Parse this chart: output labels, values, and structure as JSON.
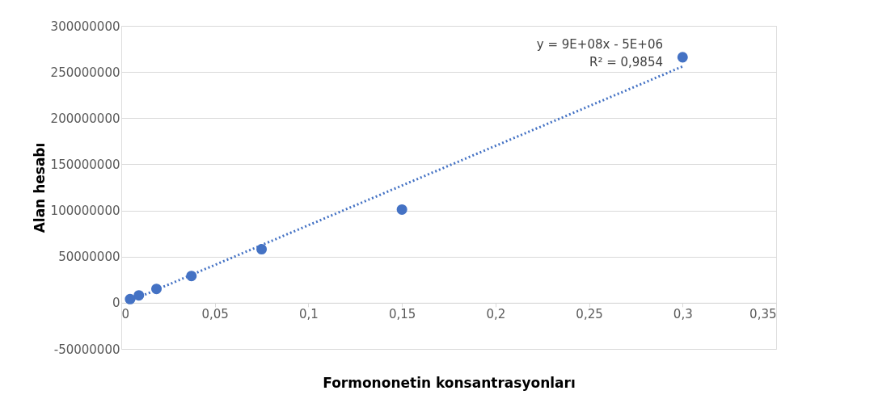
{
  "chart_data": {
    "type": "scatter",
    "xlabel": "Formononetin konsantrasyonları",
    "ylabel": "Alan hesabı",
    "annotations": [
      "y = 9E+08x - 5E+06",
      "R² = 0,9854"
    ],
    "series": [
      {
        "color": "#4472c4",
        "x": [
          0.0047,
          0.0094,
          0.0188,
          0.0375,
          0.075,
          0.15,
          0.3
        ],
        "values": [
          4000000,
          8000000,
          15000000,
          29000000,
          58000000,
          101000000,
          266000000
        ],
        "marker": "circle"
      },
      {
        "type": "line",
        "color": "#4472c4",
        "x": [
          0.0047,
          0.3
        ],
        "values": [
          2000000,
          256000000
        ],
        "line_style": "dotted"
      }
    ],
    "xlim": [
      0,
      0.35
    ],
    "xticks": [
      0,
      {
        "value": 0.05,
        "label": "0,05"
      },
      {
        "value": 0.1,
        "label": "0,1"
      },
      {
        "value": 0.15,
        "label": "0,15"
      },
      {
        "value": 0.2,
        "label": "0,2"
      },
      {
        "value": 0.25,
        "label": "0,25"
      },
      {
        "value": 0.3,
        "label": "0,3"
      },
      {
        "value": 0.35,
        "label": "0,35"
      }
    ],
    "ylim": [
      -50000000,
      300000000
    ],
    "yticks": [
      -50000000,
      0,
      50000000,
      100000000,
      150000000,
      200000000,
      250000000,
      300000000
    ],
    "grid": "y"
  }
}
